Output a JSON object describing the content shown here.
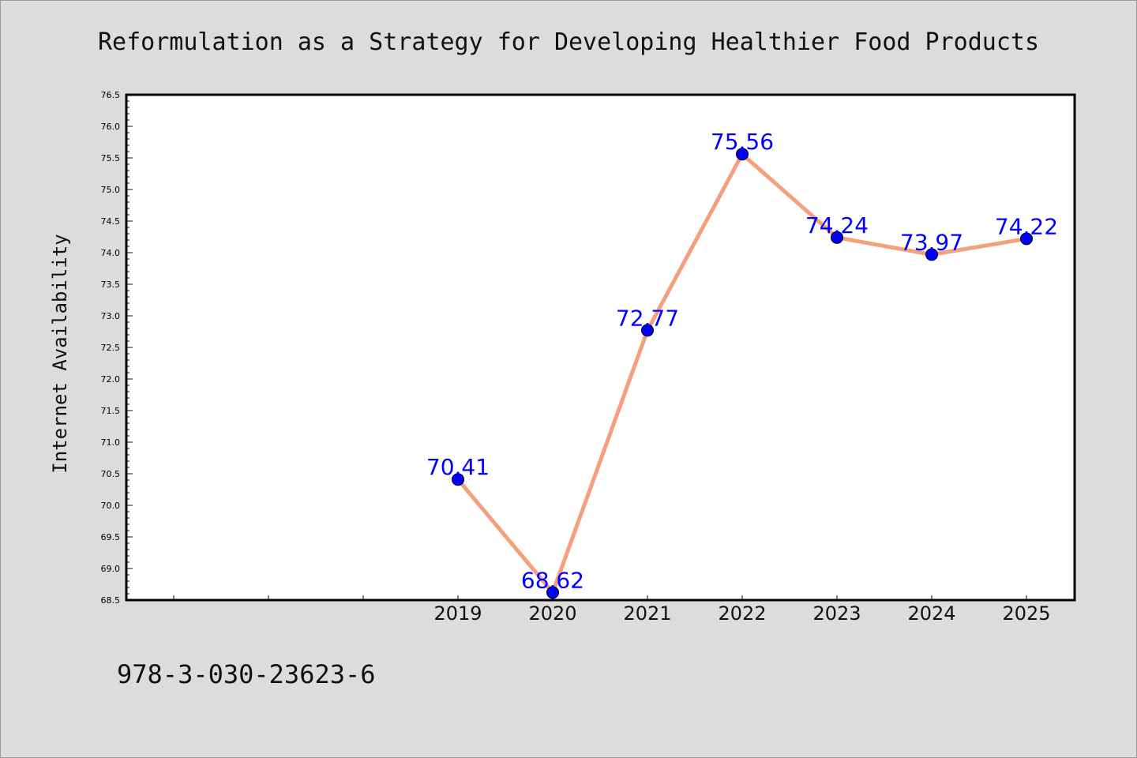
{
  "chart_data": {
    "type": "line",
    "title": "Reformulation as a Strategy for Developing Healthier Food Products",
    "ylabel": "Internet Availability",
    "xlabel": "",
    "ylim": [
      68.5,
      76.5
    ],
    "y_ticks": [
      "68.5",
      "69.0",
      "69.5",
      "70.0",
      "70.5",
      "71.0",
      "71.5",
      "72.0",
      "72.5",
      "73.0",
      "73.5",
      "74.0",
      "74.5",
      "75.0",
      "75.5",
      "76.0",
      "76.5"
    ],
    "categories": [
      "",
      "",
      "",
      "2019",
      "2020",
      "2021",
      "2022",
      "2023",
      "2024",
      "2025"
    ],
    "series": [
      {
        "x": [
          "2019",
          "2020",
          "2021",
          "2022",
          "2023",
          "2024",
          "2025"
        ],
        "values": [
          70.41,
          68.62,
          72.77,
          75.56,
          74.24,
          73.97,
          74.22
        ],
        "labels": [
          "70.41",
          "68.62",
          "72.77",
          "75.56",
          "74.24",
          "73.97",
          "74.22"
        ],
        "line_color": "#f4a07f",
        "marker_color": "#0000ff",
        "label_color": "#0000ff"
      }
    ],
    "grid": false,
    "legend": "none"
  },
  "footnote": "978-3-030-23623-6"
}
